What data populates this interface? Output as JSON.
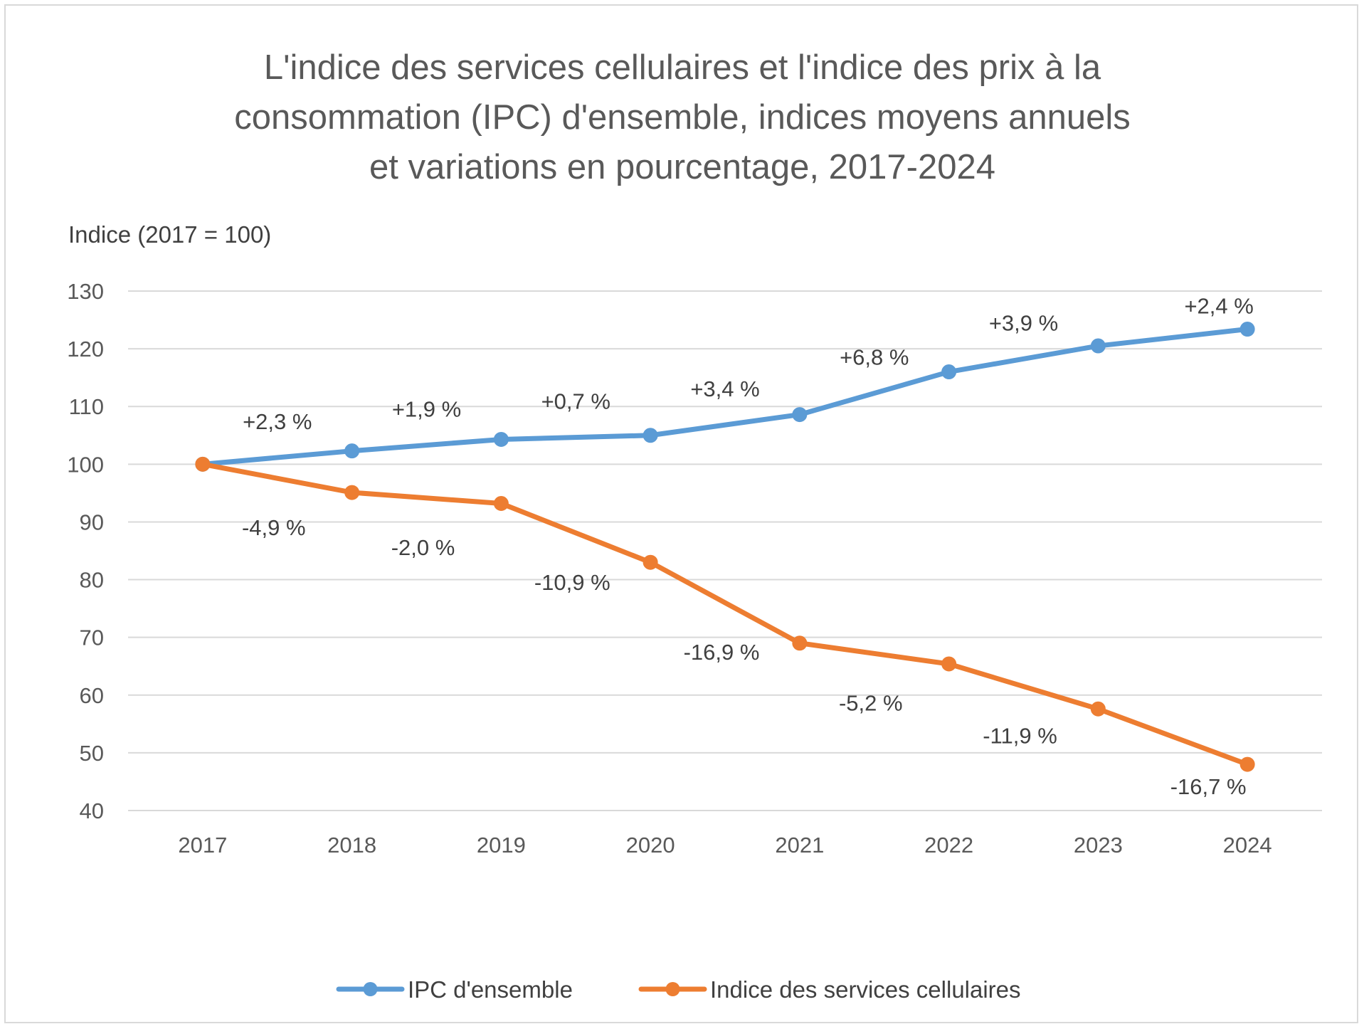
{
  "chart_data": {
    "type": "line",
    "title_lines": [
      "L'indice des services cellulaires et l'indice des prix à la",
      "consommation (IPC) d'ensemble, indices moyens annuels",
      "et variations en pourcentage, 2017-2024"
    ],
    "ylabel": "Indice (2017 = 100)",
    "xlabel": "",
    "categories": [
      "2017",
      "2018",
      "2019",
      "2020",
      "2021",
      "2022",
      "2023",
      "2024"
    ],
    "ylim": [
      40,
      130
    ],
    "yticks": [
      40,
      50,
      60,
      70,
      80,
      90,
      100,
      110,
      120,
      130
    ],
    "grid": true,
    "legend_position": "bottom",
    "series": [
      {
        "name": "IPC d'ensemble",
        "color": "#5b9bd5",
        "values": [
          100,
          102.3,
          104.3,
          105.0,
          108.6,
          116.0,
          120.5,
          123.4
        ],
        "change_labels": [
          "",
          "+2,3 %",
          "+1,9 %",
          "+0,7 %",
          "+3,4 %",
          "+6,8 %",
          "+3,9 %",
          "+2,4 %"
        ],
        "label_side": "above"
      },
      {
        "name": "Indice des services cellulaires",
        "color": "#ed7d31",
        "values": [
          100,
          95.1,
          93.2,
          83.0,
          69.0,
          65.4,
          57.6,
          48.0
        ],
        "change_labels": [
          "",
          "-4,9 %",
          "-2,0 %",
          "-10,9 %",
          "-16,9 %",
          "-5,2 %",
          "-11,9 %",
          "-16,7 %"
        ],
        "label_side": "below"
      }
    ]
  }
}
